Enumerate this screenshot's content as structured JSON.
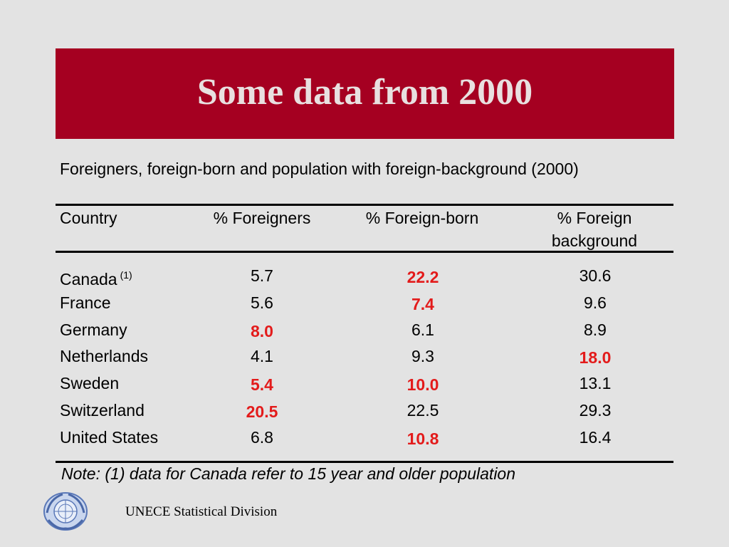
{
  "slide": {
    "title": "Some data from 2000",
    "subtitle": "Foreigners, foreign-born and population with foreign-background (2000)",
    "note": "Note: (1) data for Canada refer to 15 year and older population",
    "footer": "UNECE Statistical Division",
    "logo_icon": "un-emblem-icon"
  },
  "table": {
    "headers": {
      "country": "Country",
      "foreigners": "% Foreigners",
      "foreign_born": "% Foreign-born",
      "foreign_background_1": "% Foreign",
      "foreign_background_2": "background"
    },
    "footnote_marker": "(1)",
    "rows": [
      {
        "country": "Canada",
        "foreigners": "5.7",
        "foreign_born": "22.2",
        "foreign_background": "30.6"
      },
      {
        "country": "France",
        "foreigners": "5.6",
        "foreign_born": "7.4",
        "foreign_background": "9.6"
      },
      {
        "country": "Germany",
        "foreigners": "8.0",
        "foreign_born": "6.1",
        "foreign_background": "8.9"
      },
      {
        "country": "Netherlands",
        "foreigners": "4.1",
        "foreign_born": "9.3",
        "foreign_background": "18.0"
      },
      {
        "country": "Sweden",
        "foreigners": "5.4",
        "foreign_born": "10.0",
        "foreign_background": "13.1"
      },
      {
        "country": "Switzerland",
        "foreigners": "20.5",
        "foreign_born": "22.5",
        "foreign_background": "29.3"
      },
      {
        "country": "United States",
        "foreigners": "6.8",
        "foreign_born": "10.8",
        "foreign_background": "16.4"
      }
    ],
    "highlight_color": "#e31b1b"
  }
}
